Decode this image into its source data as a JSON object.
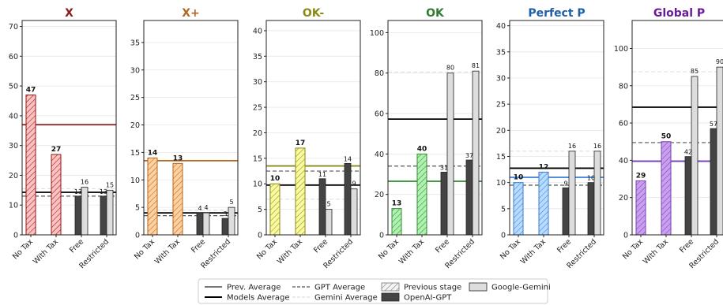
{
  "chart_data": [
    {
      "type": "bar",
      "title": "X",
      "title_color": "#8b1a1a",
      "series_color": "#8b1a1a",
      "fill": "#ffc0c0",
      "categories": [
        "No Tax",
        "With Tax",
        "Free",
        "Restricted"
      ],
      "ylim": [
        0,
        72
      ],
      "yticks": [
        0,
        10,
        20,
        30,
        40,
        50,
        60,
        70
      ],
      "previous_stage": [
        47,
        27
      ],
      "openai_gpt": [
        13,
        13
      ],
      "google_gemini": [
        16,
        15
      ],
      "prev_average": 37,
      "models_average": 14.3,
      "gpt_average": 13,
      "gemini_average": 15.5
    },
    {
      "type": "bar",
      "title": "X+",
      "title_color": "#b5651d",
      "series_color": "#b5651d",
      "fill": "#ffd0a0",
      "categories": [
        "No Tax",
        "With Tax",
        "Free",
        "Restricted"
      ],
      "ylim": [
        0,
        39
      ],
      "yticks": [
        0,
        5,
        10,
        15,
        20,
        25,
        30,
        35
      ],
      "previous_stage": [
        14,
        13
      ],
      "openai_gpt": [
        4,
        3
      ],
      "google_gemini": [
        4,
        5
      ],
      "prev_average": 13.5,
      "models_average": 4,
      "gpt_average": 3.5,
      "gemini_average": 4.5
    },
    {
      "type": "bar",
      "title": "OK-",
      "title_color": "#8a8a1a",
      "series_color": "#8a8a1a",
      "fill": "#fafaa0",
      "categories": [
        "No Tax",
        "With Tax",
        "Free",
        "Restricted"
      ],
      "ylim": [
        0,
        42
      ],
      "yticks": [
        0,
        5,
        10,
        15,
        20,
        25,
        30,
        35,
        40
      ],
      "previous_stage": [
        10,
        17
      ],
      "openai_gpt": [
        11,
        14
      ],
      "google_gemini": [
        5,
        9
      ],
      "prev_average": 13.5,
      "models_average": 9.75,
      "gpt_average": 12.5,
      "gemini_average": 7
    },
    {
      "type": "bar",
      "title": "OK",
      "title_color": "#2e7d32",
      "series_color": "#2e8b2e",
      "fill": "#b0f0b0",
      "categories": [
        "No Tax",
        "With Tax",
        "Free",
        "Restricted"
      ],
      "ylim": [
        0,
        106
      ],
      "yticks": [
        0,
        20,
        40,
        60,
        80,
        100
      ],
      "previous_stage": [
        13,
        40
      ],
      "openai_gpt": [
        31,
        37
      ],
      "google_gemini": [
        80,
        81
      ],
      "prev_average": 26.5,
      "models_average": 57.25,
      "gpt_average": 34,
      "gemini_average": 80.5
    },
    {
      "type": "bar",
      "title": "Perfect P",
      "title_color": "#1f5fa8",
      "series_color": "#3a7bd5",
      "fill": "#b8dcff",
      "categories": [
        "No Tax",
        "With Tax",
        "Free",
        "Restricted"
      ],
      "ylim": [
        0,
        41
      ],
      "yticks": [
        0,
        5,
        10,
        15,
        20,
        25,
        30,
        35,
        40
      ],
      "previous_stage": [
        10,
        12
      ],
      "openai_gpt": [
        9,
        10
      ],
      "google_gemini": [
        16,
        16
      ],
      "prev_average": 11,
      "models_average": 12.75,
      "gpt_average": 9.5,
      "gemini_average": 16
    },
    {
      "type": "bar",
      "title": "Global P",
      "title_color": "#6a1b9a",
      "series_color": "#7b3fb5",
      "fill": "#c9a0f0",
      "categories": [
        "No Tax",
        "With Tax",
        "Free",
        "Restricted"
      ],
      "ylim": [
        0,
        115
      ],
      "yticks": [
        0,
        20,
        40,
        60,
        80,
        100
      ],
      "previous_stage": [
        29,
        50
      ],
      "openai_gpt": [
        42,
        57
      ],
      "google_gemini": [
        85,
        90
      ],
      "prev_average": 39.5,
      "models_average": 68.5,
      "gpt_average": 49.5,
      "gemini_average": 87.5
    }
  ],
  "legend": {
    "items": [
      {
        "label": "Prev. Average",
        "kind": "line",
        "color": "#777777",
        "dash": "solid",
        "width": 2
      },
      {
        "label": "Models Average",
        "kind": "line",
        "color": "#000000",
        "dash": "solid",
        "width": 2
      },
      {
        "label": "GPT Average",
        "kind": "line",
        "color": "#555555",
        "dash": "dashed",
        "width": 1.3
      },
      {
        "label": "Gemini Average",
        "kind": "line",
        "color": "#dddddd",
        "dash": "dashed",
        "width": 1.3
      },
      {
        "label": "Previous stage",
        "kind": "hatch"
      },
      {
        "label": "OpenAI-GPT",
        "kind": "box",
        "color": "#444444"
      },
      {
        "label": "Google-Gemini",
        "kind": "box",
        "color": "#dddddd"
      }
    ]
  }
}
